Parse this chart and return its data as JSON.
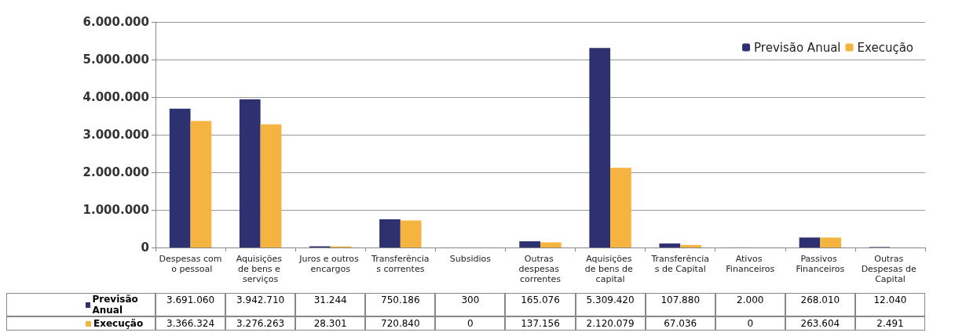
{
  "chart_data": {
    "type": "bar",
    "categories": [
      "Despesas com o pessoal",
      "Aquisições de bens e serviços",
      "Juros e outros encargos",
      "Transferências correntes",
      "Subsidios",
      "Outras despesas correntes",
      "Aquisições de bens de capital",
      "Transferências de Capital",
      "Ativos Financeiros",
      "Passivos Financeiros",
      "Outras Despesas de Capital"
    ],
    "series": [
      {
        "name": "Previsão Anual",
        "color": "#2e3170",
        "values": [
          3691060,
          3942710,
          31244,
          750186,
          300,
          165076,
          5309420,
          107880,
          2000,
          268010,
          12040
        ],
        "value_labels": [
          "3.691.060",
          "3.942.710",
          "31.244",
          "750.186",
          "300",
          "165.076",
          "5.309.420",
          "107.880",
          "2.000",
          "268.010",
          "12.040"
        ]
      },
      {
        "name": "Execução",
        "color": "#f5b33f",
        "values": [
          3366324,
          3276263,
          28301,
          720840,
          0,
          137156,
          2120079,
          67036,
          0,
          263604,
          2491
        ],
        "value_labels": [
          "3.366.324",
          "3.276.263",
          "28.301",
          "720.840",
          "0",
          "137.156",
          "2.120.079",
          "67.036",
          "0",
          "263.604",
          "2.491"
        ]
      }
    ],
    "ylim": [
      0,
      6000000
    ],
    "yticks": [
      0,
      {
        "value": 1000000,
        "label": "1.000.000"
      },
      {
        "value": 2000000,
        "label": "2.000.000"
      },
      {
        "value": 3000000,
        "label": "3.000.000"
      },
      {
        "value": 4000000,
        "label": "4.000.000"
      },
      {
        "value": 5000000,
        "label": "5.000.000"
      },
      {
        "value": 6000000,
        "label": "6.000.000"
      }
    ],
    "grid": "y",
    "legend": "top right"
  }
}
